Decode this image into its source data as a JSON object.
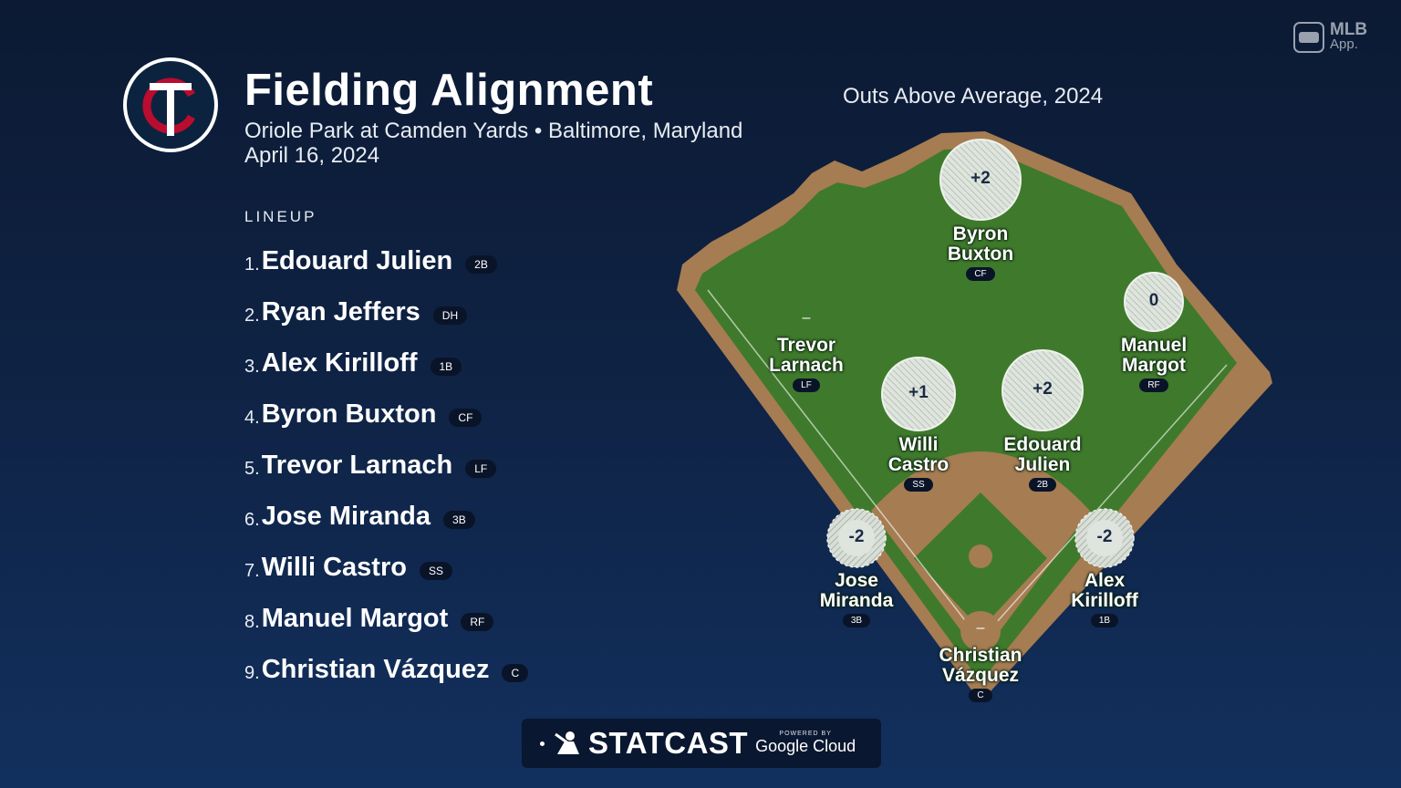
{
  "branding": {
    "app_line1": "MLB",
    "app_line2": "App.",
    "team_logo": "twins-tc-logo",
    "team_colors": {
      "navy": "#0c2340",
      "red": "#ba0c2f"
    }
  },
  "header": {
    "title": "Fielding Alignment",
    "subtitle": "Oriole Park at Camden Yards • Baltimore, Maryland",
    "date": "April 16, 2024"
  },
  "lineup": {
    "label": "LINEUP",
    "items": [
      {
        "num": "1.",
        "name": "Edouard Julien",
        "pos": "2B"
      },
      {
        "num": "2.",
        "name": "Ryan Jeffers",
        "pos": "DH"
      },
      {
        "num": "3.",
        "name": "Alex Kirilloff",
        "pos": "1B"
      },
      {
        "num": "4.",
        "name": "Byron Buxton",
        "pos": "CF"
      },
      {
        "num": "5.",
        "name": "Trevor Larnach",
        "pos": "LF"
      },
      {
        "num": "6.",
        "name": "Jose Miranda",
        "pos": "3B"
      },
      {
        "num": "7.",
        "name": "Willi Castro",
        "pos": "SS"
      },
      {
        "num": "8.",
        "name": "Manuel Margot",
        "pos": "RF"
      },
      {
        "num": "9.",
        "name": "Christian Vázquez",
        "pos": "C"
      }
    ]
  },
  "field": {
    "label": "Outs Above Average, 2024",
    "colors": {
      "grass": "#3f7a2c",
      "dirt": "#a67c52",
      "circle_positive": "#dfe5de",
      "circle_negative": "#dfe5de"
    },
    "players": {
      "cf": {
        "line1": "Byron",
        "line2": "Buxton",
        "pos": "CF",
        "oaa": "+2"
      },
      "rf": {
        "line1": "Manuel",
        "line2": "Margot",
        "pos": "RF",
        "oaa": "0"
      },
      "lf": {
        "line1": "Trevor",
        "line2": "Larnach",
        "pos": "LF",
        "oaa": "–"
      },
      "ss": {
        "line1": "Willi",
        "line2": "Castro",
        "pos": "SS",
        "oaa": "+1"
      },
      "2b": {
        "line1": "Edouard",
        "line2": "Julien",
        "pos": "2B",
        "oaa": "+2"
      },
      "3b": {
        "line1": "Jose",
        "line2": "Miranda",
        "pos": "3B",
        "oaa": "-2"
      },
      "1b": {
        "line1": "Alex",
        "line2": "Kirilloff",
        "pos": "1B",
        "oaa": "-2"
      },
      "c": {
        "line1": "Christian",
        "line2": "Vázquez",
        "pos": "C",
        "oaa": "–"
      }
    }
  },
  "footer": {
    "statcast": "STATCAST",
    "powered_by": "POWERED BY",
    "google": "Google Cloud"
  }
}
